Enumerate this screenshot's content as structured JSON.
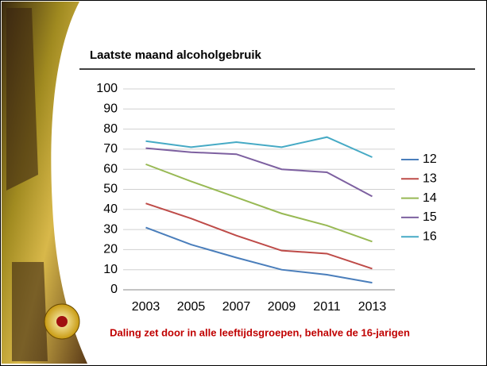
{
  "chart_data": {
    "type": "line",
    "title": "Laatste maand alcoholgebruik",
    "footnote": "Daling zet door in alle leeftijdsgroepen, behalve de 16-jarigen",
    "categories": [
      "2003",
      "2005",
      "2007",
      "2009",
      "2011",
      "2013"
    ],
    "series": [
      {
        "name": "12",
        "color": "#4a7ebb",
        "values": [
          31,
          22.5,
          16,
          10,
          7.5,
          3.5
        ]
      },
      {
        "name": "13",
        "color": "#be4b48",
        "values": [
          43,
          35.5,
          27,
          19.5,
          18,
          10.5
        ]
      },
      {
        "name": "14",
        "color": "#98b954",
        "values": [
          62.5,
          54,
          46,
          38,
          32,
          24
        ]
      },
      {
        "name": "15",
        "color": "#7d60a0",
        "values": [
          70.5,
          68.5,
          67.5,
          60,
          58.5,
          46.5
        ]
      },
      {
        "name": "16",
        "color": "#46aac5",
        "values": [
          74,
          71,
          73.5,
          71,
          76,
          66
        ]
      }
    ],
    "ylim": [
      0,
      100
    ],
    "yticks": [
      0,
      10,
      20,
      30,
      40,
      50,
      60,
      70,
      80,
      90,
      100
    ],
    "grid": true
  }
}
